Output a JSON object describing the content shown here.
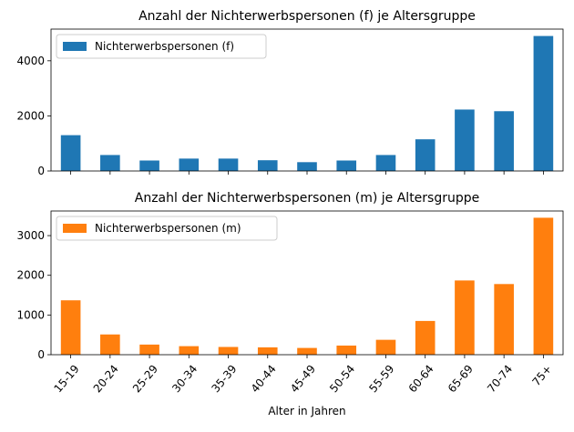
{
  "chart_data": [
    {
      "type": "bar",
      "title": "Anzahl der Nichterwerbspersonen (f) je Altersgruppe",
      "categories": [
        "15-19",
        "20-24",
        "25-29",
        "30-34",
        "35-39",
        "40-44",
        "45-49",
        "50-54",
        "55-59",
        "60-64",
        "65-69",
        "70-74",
        "75+"
      ],
      "series": [
        {
          "name": "Nichterwerbspersonen (f)",
          "color": "#1f77b4",
          "values": [
            1300,
            580,
            380,
            450,
            450,
            390,
            320,
            380,
            580,
            1150,
            2230,
            2170,
            4900
          ]
        }
      ],
      "ylim": [
        0,
        5150
      ],
      "yticks": [
        0,
        2000,
        4000
      ],
      "show_xtick_labels": false,
      "xlabel": "",
      "ylabel": "",
      "grid": false,
      "legend": "top-left"
    },
    {
      "type": "bar",
      "title": "Anzahl der Nichterwerbspersonen (m) je Altersgruppe",
      "categories": [
        "15-19",
        "20-24",
        "25-29",
        "30-34",
        "35-39",
        "40-44",
        "45-49",
        "50-54",
        "55-59",
        "60-64",
        "65-69",
        "70-74",
        "75+"
      ],
      "series": [
        {
          "name": "Nichterwerbspersonen (m)",
          "color": "#ff7f0e",
          "values": [
            1370,
            510,
            255,
            215,
            195,
            185,
            170,
            230,
            375,
            850,
            1870,
            1780,
            3450
          ]
        }
      ],
      "ylim": [
        0,
        3620
      ],
      "yticks": [
        0,
        1000,
        2000,
        3000
      ],
      "show_xtick_labels": true,
      "xlabel": "Alter in Jahren",
      "ylabel": "",
      "grid": false,
      "legend": "top-left"
    }
  ]
}
